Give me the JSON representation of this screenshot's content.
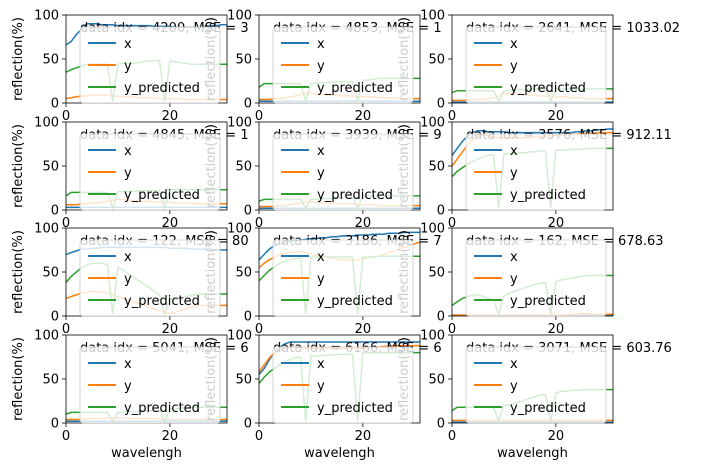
{
  "chart_data": {
    "type": "line",
    "layout": {
      "rows": 4,
      "cols": 3
    },
    "xlim": [
      0,
      31
    ],
    "ylim": [
      0,
      100
    ],
    "x_ticks": [
      0,
      20
    ],
    "y_ticks": [
      0,
      50,
      100
    ],
    "xlabel": "wavelengh",
    "ylabel": "reflection(%)",
    "series_names": [
      "x",
      "y",
      "y_predicted"
    ],
    "series_colors": [
      "#1f77b4",
      "#ff7f0e",
      "#2ca02c"
    ],
    "panels": [
      {
        "title": "data idx = 4200, MSE = 3",
        "x": [
          66,
          70,
          78,
          84,
          90,
          90,
          90,
          89,
          89,
          89,
          88,
          88,
          88,
          88,
          88,
          88,
          88,
          87,
          87,
          87,
          87,
          86,
          86,
          86,
          86,
          86,
          86,
          87,
          88,
          88,
          89,
          89
        ],
        "y": [
          5,
          6,
          7,
          8,
          8,
          9,
          9,
          9,
          9,
          8,
          8,
          7,
          7,
          7,
          6,
          6,
          6,
          6,
          5,
          5,
          5,
          5,
          5,
          4,
          4,
          4,
          4,
          4,
          4,
          4,
          4,
          4
        ],
        "y_predicted": [
          35,
          38,
          40,
          42,
          44,
          44,
          44,
          44,
          44,
          2,
          44,
          45,
          45,
          45,
          46,
          47,
          48,
          48,
          48,
          2,
          48,
          47,
          46,
          45,
          44,
          44,
          44,
          44,
          44,
          44,
          44,
          44
        ]
      },
      {
        "title": "data idx = 4853, MSE = 1",
        "x": [
          2,
          2,
          2,
          2,
          2,
          2,
          2,
          2,
          2,
          2,
          2,
          2,
          2,
          2,
          2,
          2,
          2,
          2,
          2,
          2,
          2,
          2,
          2,
          2,
          2,
          2,
          2,
          2,
          2,
          2,
          2,
          2
        ],
        "y": [
          4,
          4,
          4,
          5,
          5,
          6,
          7,
          8,
          10,
          11,
          11,
          10,
          10,
          9,
          9,
          9,
          8,
          8,
          8,
          7,
          7,
          7,
          7,
          6,
          6,
          6,
          6,
          5,
          5,
          5,
          5,
          5
        ],
        "y_predicted": [
          18,
          22,
          22,
          22,
          22,
          22,
          22,
          22,
          22,
          2,
          22,
          23,
          23,
          23,
          24,
          24,
          24,
          24,
          24,
          2,
          26,
          26,
          27,
          28,
          28,
          28,
          28,
          28,
          28,
          28,
          28,
          28
        ]
      },
      {
        "title": "data idx = 2641, MSE = 1033.02",
        "x": [
          1,
          1,
          1,
          1,
          1,
          1,
          1,
          1,
          1,
          1,
          1,
          1,
          1,
          1,
          1,
          1,
          1,
          1,
          1,
          1,
          1,
          1,
          1,
          1,
          1,
          1,
          1,
          1,
          1,
          1,
          1,
          1
        ],
        "y": [
          3,
          3,
          3,
          3,
          4,
          4,
          4,
          5,
          6,
          8,
          10,
          11,
          11,
          10,
          9,
          9,
          9,
          8,
          8,
          8,
          7,
          7,
          7,
          6,
          6,
          6,
          5,
          5,
          5,
          5,
          5,
          5
        ],
        "y_predicted": [
          12,
          14,
          14,
          14,
          14,
          14,
          14,
          14,
          14,
          2,
          14,
          14,
          15,
          15,
          15,
          16,
          16,
          16,
          16,
          2,
          16,
          16,
          16,
          16,
          16,
          16,
          16,
          16,
          16,
          16,
          16,
          16
        ]
      },
      {
        "title": "data idx = 4845, MSE = 1",
        "x": [
          3,
          3,
          3,
          3,
          3,
          3,
          3,
          3,
          3,
          3,
          3,
          3,
          3,
          3,
          3,
          3,
          3,
          3,
          3,
          3,
          3,
          3,
          3,
          3,
          3,
          3,
          3,
          3,
          3,
          3,
          3,
          3
        ],
        "y": [
          6,
          6,
          6,
          7,
          7,
          8,
          8,
          9,
          10,
          11,
          12,
          12,
          11,
          11,
          10,
          10,
          10,
          9,
          9,
          9,
          9,
          8,
          8,
          8,
          8,
          7,
          7,
          7,
          7,
          7,
          7,
          7
        ],
        "y_predicted": [
          16,
          20,
          20,
          20,
          20,
          20,
          20,
          20,
          20,
          2,
          21,
          21,
          21,
          21,
          22,
          22,
          22,
          22,
          22,
          2,
          23,
          23,
          23,
          23,
          23,
          23,
          23,
          23,
          23,
          23,
          23,
          23
        ]
      },
      {
        "title": "data idx = 3939, MSE = 9",
        "x": [
          2,
          2,
          2,
          2,
          2,
          2,
          2,
          2,
          2,
          2,
          2,
          2,
          2,
          2,
          2,
          2,
          2,
          2,
          2,
          2,
          2,
          2,
          2,
          2,
          2,
          2,
          2,
          2,
          2,
          2,
          2,
          2
        ],
        "y": [
          4,
          4,
          4,
          4,
          5,
          5,
          6,
          7,
          8,
          9,
          9,
          9,
          8,
          8,
          8,
          7,
          7,
          7,
          7,
          6,
          6,
          6,
          6,
          5,
          5,
          5,
          5,
          5,
          5,
          5,
          5,
          5
        ],
        "y_predicted": [
          10,
          12,
          12,
          12,
          12,
          12,
          12,
          12,
          12,
          2,
          12,
          12,
          13,
          13,
          13,
          14,
          14,
          14,
          14,
          2,
          16,
          16,
          16,
          16,
          16,
          16,
          16,
          16,
          16,
          16,
          16,
          16
        ]
      },
      {
        "title": "data idx = 3576, MSE = 912.11",
        "x": [
          62,
          70,
          78,
          84,
          88,
          90,
          90,
          89,
          89,
          89,
          89,
          88,
          88,
          88,
          88,
          88,
          88,
          88,
          88,
          88,
          88,
          88,
          88,
          88,
          89,
          89,
          90,
          90,
          91,
          91,
          92,
          92
        ],
        "y": [
          50,
          58,
          66,
          74,
          80,
          84,
          85,
          84,
          83,
          82,
          82,
          82,
          82,
          82,
          82,
          82,
          83,
          83,
          84,
          84,
          85,
          85,
          86,
          86,
          86,
          87,
          87,
          87,
          88,
          88,
          88,
          88
        ],
        "y_predicted": [
          38,
          44,
          48,
          52,
          55,
          58,
          60,
          62,
          63,
          2,
          64,
          64,
          64,
          65,
          65,
          66,
          66,
          67,
          67,
          2,
          68,
          68,
          68,
          69,
          69,
          69,
          70,
          70,
          70,
          70,
          70,
          70
        ]
      },
      {
        "title": "data idx = 122, MSE = 80",
        "x": [
          70,
          72,
          74,
          76,
          76,
          77,
          77,
          78,
          78,
          78,
          78,
          78,
          78,
          78,
          78,
          78,
          78,
          78,
          78,
          78,
          77,
          77,
          77,
          77,
          76,
          76,
          76,
          76,
          76,
          75,
          75,
          75
        ],
        "y": [
          20,
          22,
          24,
          26,
          27,
          28,
          28,
          27,
          26,
          24,
          22,
          20,
          18,
          16,
          14,
          12,
          10,
          8,
          6,
          4,
          3,
          4,
          6,
          8,
          10,
          11,
          12,
          12,
          12,
          12,
          12,
          12
        ],
        "y_predicted": [
          38,
          45,
          50,
          55,
          58,
          60,
          60,
          60,
          58,
          2,
          55,
          52,
          48,
          44,
          40,
          36,
          32,
          28,
          24,
          2,
          20,
          18,
          20,
          22,
          24,
          24,
          25,
          25,
          25,
          25,
          25,
          25
        ]
      },
      {
        "title": "data idx = 3186, MSE = 7",
        "x": [
          64,
          70,
          76,
          80,
          82,
          84,
          85,
          86,
          86,
          87,
          88,
          88,
          89,
          89,
          90,
          90,
          91,
          91,
          91,
          92,
          92,
          92,
          93,
          93,
          93,
          94,
          94,
          94,
          95,
          95,
          95,
          95
        ],
        "y": [
          55,
          60,
          64,
          67,
          70,
          71,
          72,
          73,
          73,
          72,
          70,
          69,
          68,
          67,
          66,
          65,
          64,
          64,
          64,
          64,
          65,
          66,
          67,
          68,
          70,
          72,
          74,
          76,
          78,
          80,
          82,
          84
        ],
        "y_predicted": [
          40,
          46,
          52,
          56,
          60,
          62,
          64,
          65,
          66,
          2,
          67,
          67,
          67,
          67,
          67,
          67,
          67,
          67,
          67,
          2,
          67,
          67,
          67,
          68,
          68,
          68,
          68,
          68,
          68,
          68,
          68,
          68
        ]
      },
      {
        "title": "data idx = 162, MSE = 678.63",
        "x": [
          1,
          1,
          1,
          1,
          1,
          1,
          1,
          1,
          1,
          1,
          1,
          1,
          1,
          1,
          1,
          1,
          1,
          1,
          1,
          1,
          1,
          1,
          1,
          1,
          1,
          1,
          1,
          1,
          1,
          1,
          1,
          1
        ],
        "y": [
          1,
          1,
          1,
          1,
          1,
          1,
          1,
          1,
          1,
          1,
          1,
          1,
          1,
          1,
          1,
          1,
          1,
          1,
          1,
          1,
          1,
          1,
          1,
          2,
          2,
          3,
          3,
          2,
          2,
          2,
          2,
          2
        ],
        "y_predicted": [
          12,
          16,
          20,
          22,
          24,
          24,
          22,
          20,
          18,
          2,
          22,
          26,
          28,
          30,
          32,
          34,
          36,
          37,
          38,
          2,
          39,
          41,
          42,
          43,
          44,
          45,
          46,
          46,
          46,
          46,
          46,
          46
        ]
      },
      {
        "title": "data idx = 5041, MSE = 6",
        "x": [
          2,
          2,
          2,
          2,
          2,
          2,
          2,
          2,
          2,
          2,
          2,
          2,
          2,
          2,
          2,
          2,
          2,
          2,
          2,
          2,
          2,
          2,
          2,
          2,
          2,
          2,
          2,
          2,
          2,
          2,
          2,
          2
        ],
        "y": [
          4,
          4,
          4,
          4,
          5,
          5,
          5,
          5,
          6,
          6,
          6,
          6,
          5,
          5,
          5,
          5,
          5,
          5,
          5,
          4,
          4,
          4,
          4,
          4,
          4,
          4,
          4,
          4,
          4,
          4,
          4,
          4
        ],
        "y_predicted": [
          10,
          12,
          12,
          12,
          12,
          12,
          12,
          12,
          12,
          2,
          12,
          12,
          13,
          13,
          13,
          14,
          14,
          14,
          14,
          2,
          16,
          16,
          17,
          17,
          18,
          18,
          18,
          18,
          18,
          18,
          18,
          18
        ]
      },
      {
        "title": "data idx = 6166, MSE = 6",
        "x": [
          55,
          62,
          72,
          80,
          86,
          90,
          92,
          92,
          92,
          92,
          92,
          92,
          92,
          92,
          92,
          92,
          92,
          92,
          92,
          92,
          92,
          92,
          92,
          92,
          92,
          92,
          92,
          92,
          92,
          92,
          92,
          92
        ],
        "y": [
          58,
          66,
          74,
          80,
          84,
          86,
          86,
          86,
          86,
          85,
          85,
          85,
          85,
          85,
          85,
          85,
          85,
          85,
          85,
          85,
          85,
          86,
          86,
          86,
          87,
          87,
          88,
          88,
          88,
          88,
          88,
          88
        ],
        "y_predicted": [
          45,
          52,
          58,
          62,
          66,
          70,
          72,
          74,
          75,
          2,
          76,
          76,
          77,
          77,
          77,
          78,
          78,
          78,
          78,
          2,
          80,
          80,
          80,
          80,
          80,
          80,
          80,
          80,
          80,
          80,
          80,
          80
        ]
      },
      {
        "title": "data idx = 3071, MSE = 603.76",
        "x": [
          1,
          1,
          1,
          1,
          1,
          1,
          1,
          1,
          1,
          1,
          1,
          1,
          1,
          1,
          1,
          1,
          1,
          1,
          1,
          1,
          1,
          1,
          1,
          1,
          1,
          1,
          1,
          1,
          1,
          1,
          1,
          1
        ],
        "y": [
          3,
          3,
          3,
          3,
          3,
          3,
          3,
          3,
          3,
          3,
          3,
          3,
          3,
          3,
          3,
          3,
          3,
          3,
          3,
          3,
          3,
          3,
          3,
          3,
          3,
          3,
          3,
          3,
          3,
          3,
          3,
          3
        ],
        "y_predicted": [
          14,
          18,
          18,
          18,
          18,
          18,
          18,
          18,
          18,
          2,
          20,
          20,
          22,
          24,
          26,
          28,
          30,
          32,
          32,
          2,
          34,
          36,
          36,
          37,
          37,
          38,
          38,
          38,
          38,
          38,
          38,
          38
        ]
      }
    ]
  }
}
